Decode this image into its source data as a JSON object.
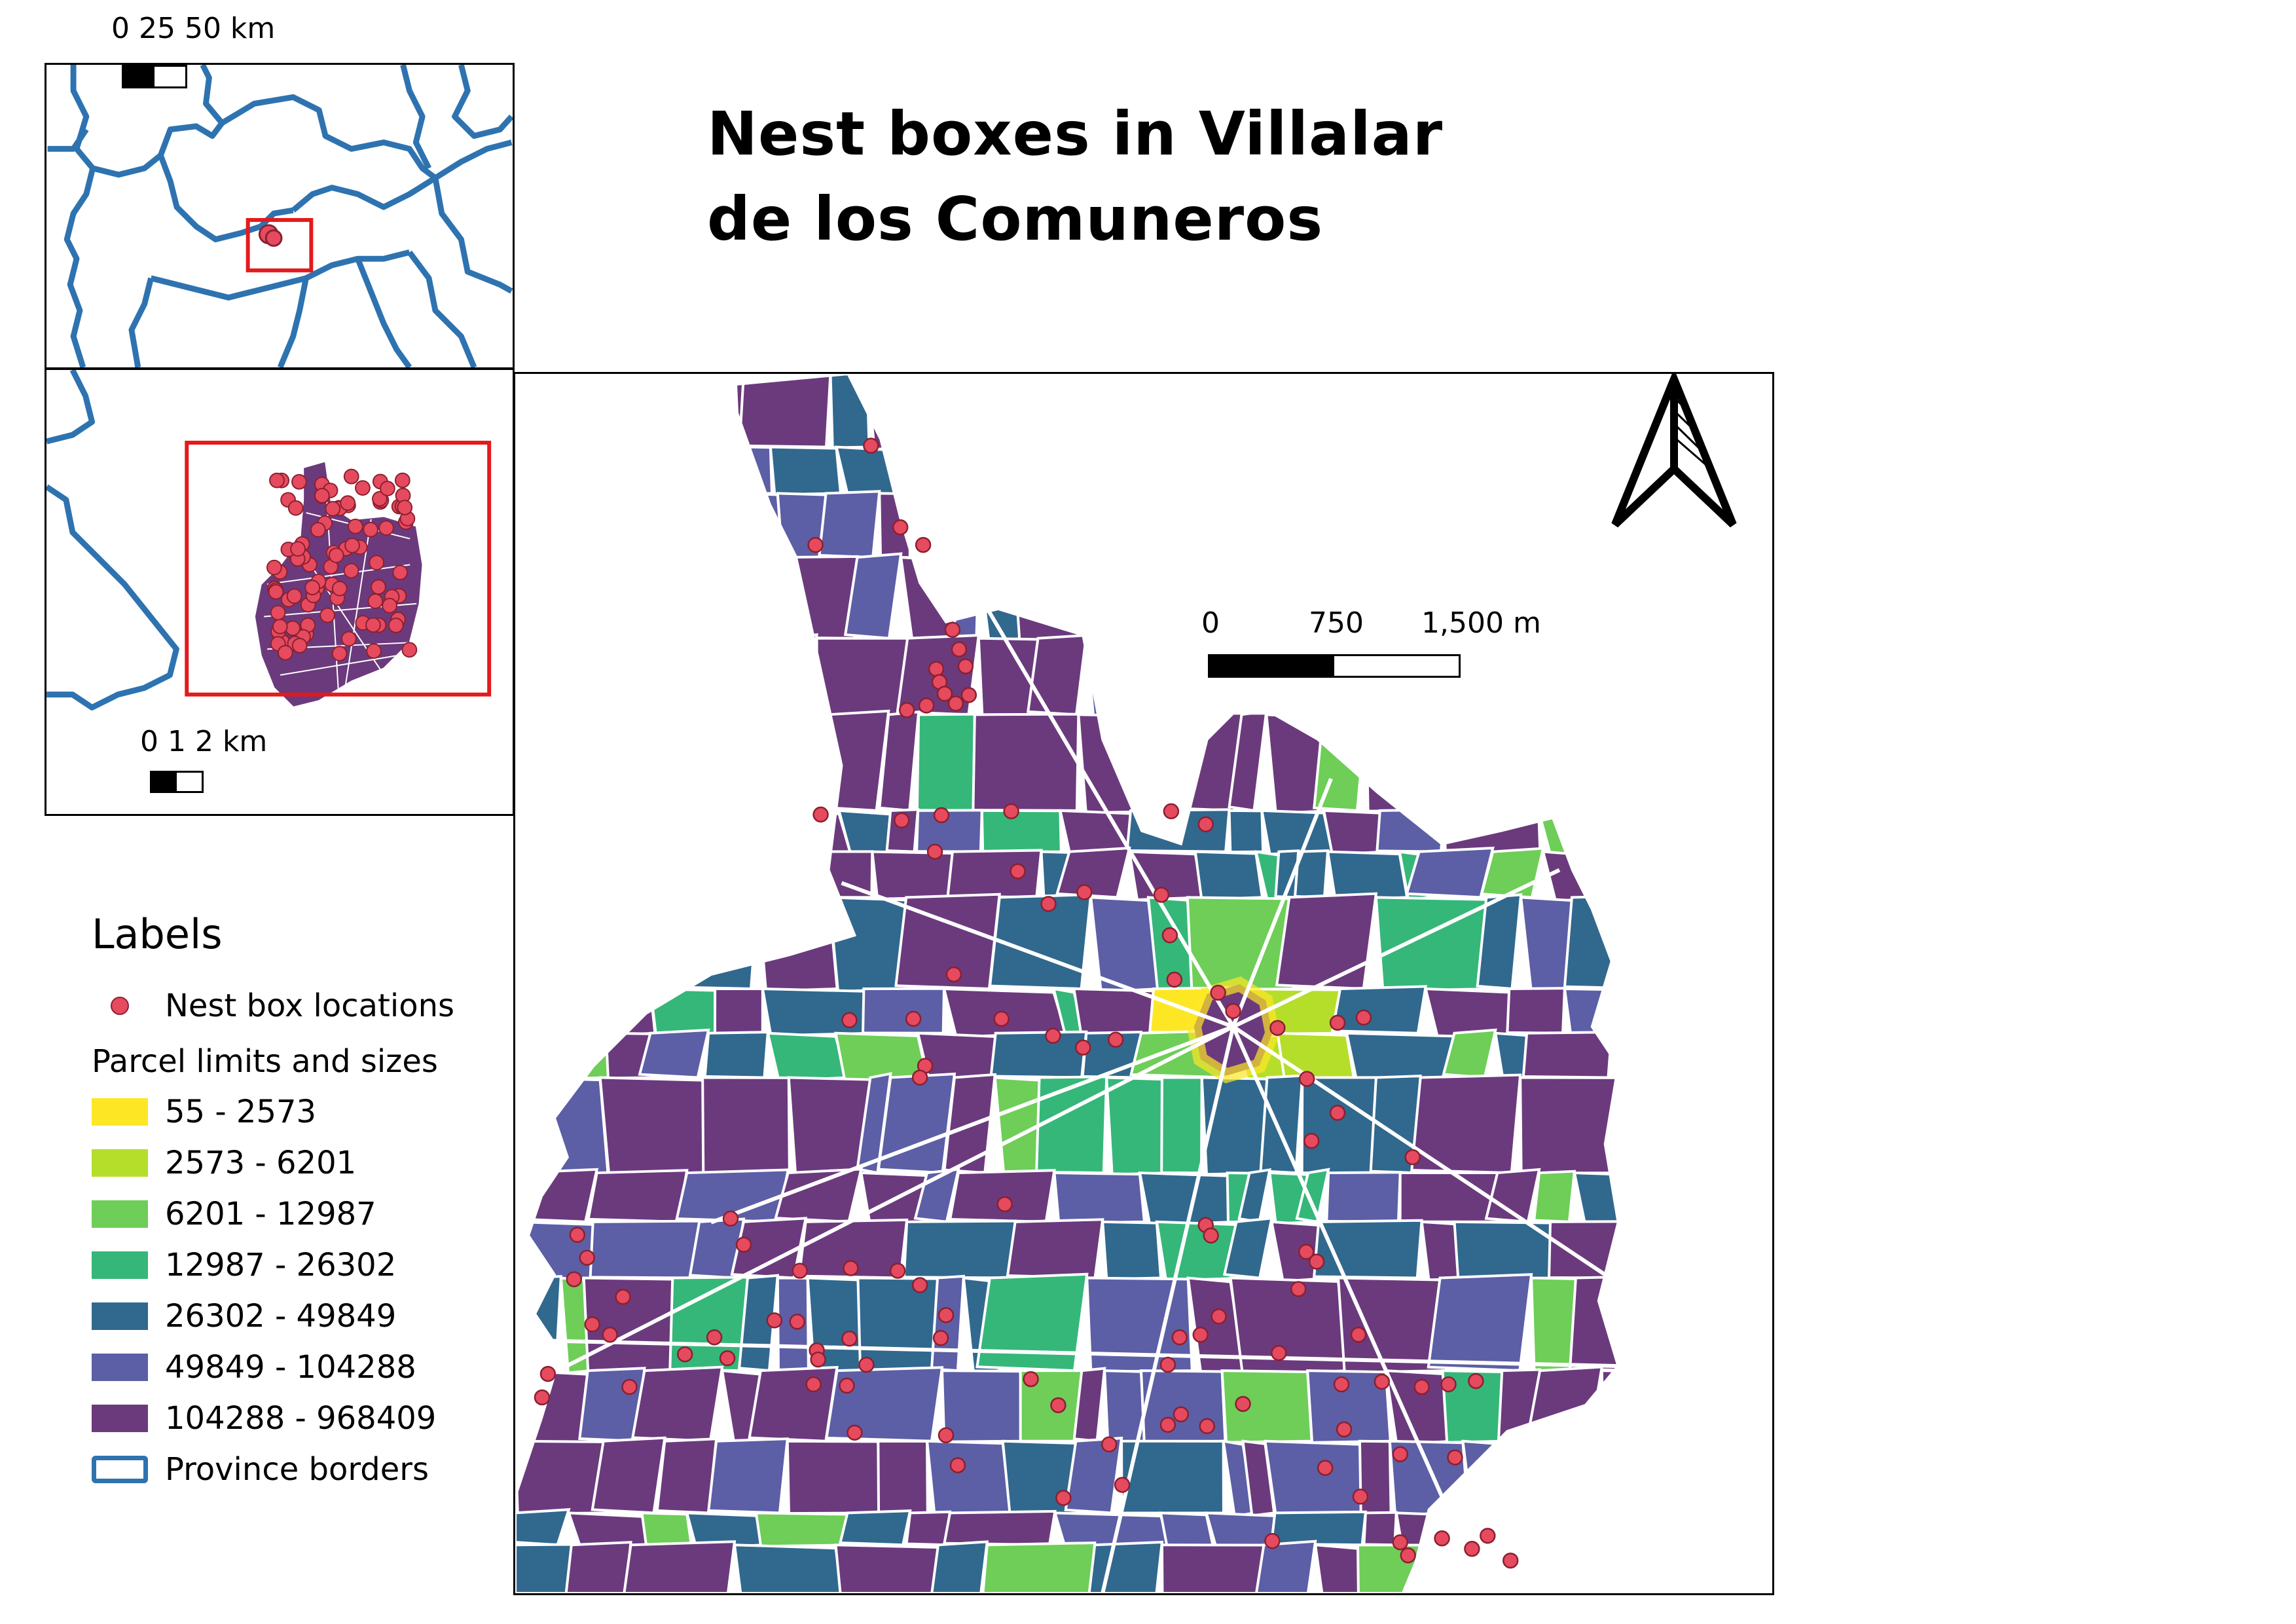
{
  "title": {
    "line1": "Nest boxes in Villalar",
    "line2": "de los Comuneros"
  },
  "inset_top": {
    "scale_label": "0 25 50 km"
  },
  "inset_mid": {
    "scale_label": "0 1 2 km"
  },
  "main_map": {
    "scale_ticks": [
      "0",
      "750",
      "1,500 m"
    ]
  },
  "legend": {
    "heading": "Labels",
    "points_label": "Nest box locations",
    "parcel_heading": "Parcel limits and sizes",
    "classes": [
      {
        "label": "55 - 2573",
        "color": "#fde725"
      },
      {
        "label": "2573 - 6201",
        "color": "#b5de2b"
      },
      {
        "label": "6201 - 12987",
        "color": "#6ece58"
      },
      {
        "label": "12987 - 26302",
        "color": "#35b779"
      },
      {
        "label": "26302 - 49849",
        "color": "#31688e"
      },
      {
        "label": "49849 - 104288",
        "color": "#5c5fa5"
      },
      {
        "label": "104288 - 968409",
        "color": "#6b3a7d"
      }
    ],
    "border_label": "Province borders"
  },
  "colors": {
    "nest_box": "#e64a5e",
    "province_border": "#2e73b0",
    "extent_box": "#e31a1c"
  },
  "icons": {
    "north_arrow": "north-arrow-icon"
  }
}
